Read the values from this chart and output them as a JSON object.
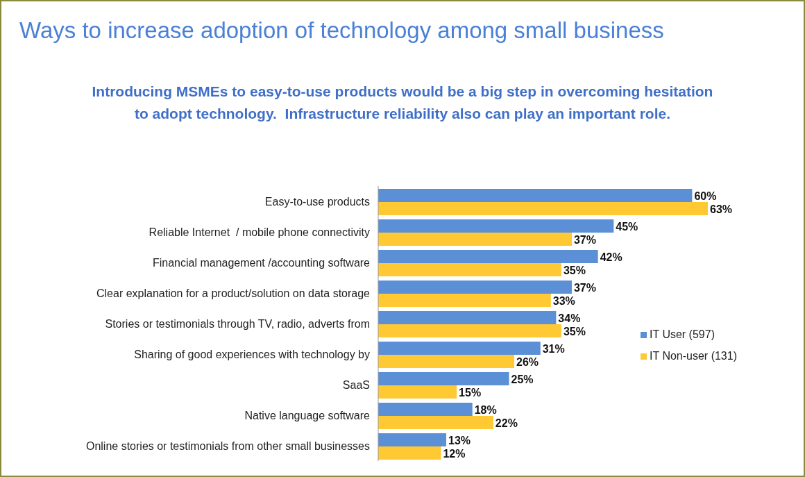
{
  "chart_data": {
    "type": "bar",
    "orientation": "horizontal",
    "title": "Ways to increase adoption of technology among small business",
    "subtitle": "Introducing MSMEs to easy-to-use products would be a big step in overcoming hesitation\nto adopt technology.  Infrastructure reliability also can play an important role.",
    "categories": [
      "Easy-to-use products",
      "Reliable Internet  / mobile phone connectivity",
      "Financial management /accounting software",
      "Clear explanation for a product/solution on data storage",
      "Stories or testimonials through TV, radio, adverts from",
      "Sharing of good experiences with technology by",
      "SaaS",
      "Native language software",
      "Online stories or testimonials from other small businesses"
    ],
    "series": [
      {
        "name": "IT User (597)",
        "color": "#5b8fd6",
        "values": [
          60,
          45,
          42,
          37,
          34,
          31,
          25,
          18,
          13
        ],
        "value_labels": [
          "60%",
          "45%",
          "42%",
          "37%",
          "34%",
          "31%",
          "25%",
          "18%",
          "13%"
        ]
      },
      {
        "name": "IT Non-user (131)",
        "color": "#ffc933",
        "values": [
          63,
          37,
          35,
          33,
          35,
          26,
          15,
          22,
          12
        ],
        "value_labels": [
          "63%",
          "37%",
          "35%",
          "33%",
          "35%",
          "26%",
          "15%",
          "22%",
          "12%"
        ]
      }
    ],
    "legend": "right"
  }
}
